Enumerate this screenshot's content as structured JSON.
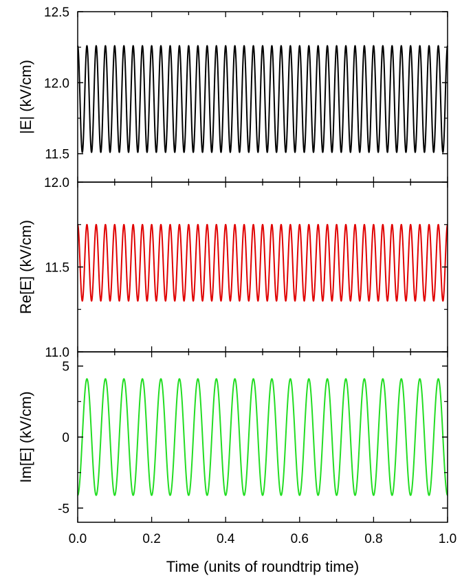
{
  "chart_data": [
    {
      "type": "line",
      "ylabel": "|E| (kV/cm)",
      "xlim": [
        0.0,
        1.0
      ],
      "ylim": [
        11.3,
        12.5
      ],
      "yticks": [
        11.5,
        12.0,
        12.5
      ],
      "yticklabels": [
        "11.5",
        "12.0",
        "12.5"
      ],
      "series": [
        {
          "color": "#000000",
          "signal": {
            "kind": "sinusoid",
            "center": 11.885,
            "amplitude": 0.375,
            "cycles": 40,
            "phase_cycles": 0.25
          }
        }
      ]
    },
    {
      "type": "line",
      "ylabel": "Re[E] (kV/cm)",
      "xlim": [
        0.0,
        1.0
      ],
      "ylim": [
        11.0,
        12.0
      ],
      "yticks": [
        11.0,
        11.5,
        12.0
      ],
      "yticklabels": [
        "11.0",
        "11.5",
        "12.0"
      ],
      "series": [
        {
          "color": "#e00000",
          "signal": {
            "kind": "sinusoid",
            "center": 11.525,
            "amplitude": 0.225,
            "cycles": 40,
            "phase_cycles": 0.25
          }
        }
      ]
    },
    {
      "type": "line",
      "ylabel": "Im[E] (kV/cm)",
      "xlabel": "Time (units of roundtrip time)",
      "xlim": [
        0.0,
        1.0
      ],
      "ylim": [
        -6.0,
        6.0
      ],
      "yticks": [
        -5,
        0,
        5
      ],
      "yticklabels": [
        "-5",
        "0",
        "5"
      ],
      "xticks": [
        0.0,
        0.2,
        0.4,
        0.6,
        0.8,
        1.0
      ],
      "xticklabels": [
        "0.0",
        "0.2",
        "0.4",
        "0.6",
        "0.8",
        "1.0"
      ],
      "series": [
        {
          "color": "#22dd22",
          "signal": {
            "kind": "sinusoid",
            "center": 0.0,
            "amplitude": 4.1,
            "cycles": 20,
            "phase_cycles": 0.75
          }
        }
      ]
    }
  ]
}
